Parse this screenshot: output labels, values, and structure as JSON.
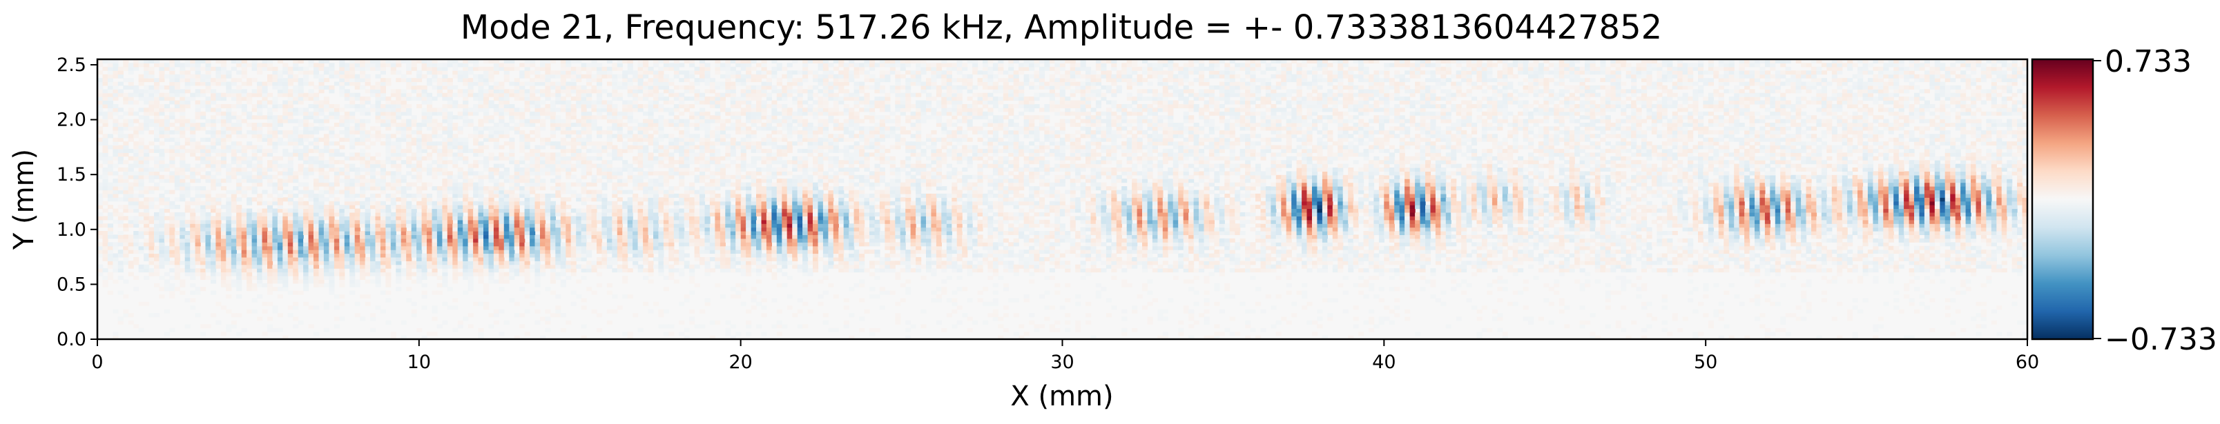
{
  "chart_data": {
    "type": "heatmap",
    "title": "Mode 21, Frequency: 517.26 kHz, Amplitude = +- 0.7333813604427852",
    "xlabel": "X (mm)",
    "ylabel": "Y (mm)",
    "xlim": [
      0,
      60
    ],
    "ylim": [
      0,
      2.55
    ],
    "x_ticks": [
      0,
      10,
      20,
      30,
      40,
      50,
      60
    ],
    "x_tick_labels": [
      "0",
      "10",
      "20",
      "30",
      "40",
      "50",
      "60"
    ],
    "y_ticks": [
      0.0,
      0.5,
      1.0,
      1.5,
      2.0,
      2.5
    ],
    "y_tick_labels": [
      "0.0",
      "0.5",
      "1.0",
      "1.5",
      "2.0",
      "2.5"
    ],
    "colormap": "RdBu_r",
    "colorbar": {
      "min": -0.733,
      "max": 0.733,
      "tick_labels": [
        "0.733",
        "−0.733"
      ],
      "colors": [
        "#67001f",
        "#b2182b",
        "#d6604d",
        "#f4a582",
        "#fddbc7",
        "#f7f7f7",
        "#d1e5f0",
        "#92c5de",
        "#4393c3",
        "#2166ac",
        "#053061"
      ]
    },
    "wave_packets": [
      {
        "x_center": 6.0,
        "x_half_width": 3.2,
        "y": 0.88,
        "amplitude": 0.42
      },
      {
        "x_center": 12.5,
        "x_half_width": 2.4,
        "y": 0.96,
        "amplitude": 0.52
      },
      {
        "x_center": 16.5,
        "x_half_width": 1.6,
        "y": 0.98,
        "amplitude": 0.28
      },
      {
        "x_center": 21.5,
        "x_half_width": 2.0,
        "y": 1.05,
        "amplitude": 0.62
      },
      {
        "x_center": 25.5,
        "x_half_width": 1.5,
        "y": 1.05,
        "amplitude": 0.3
      },
      {
        "x_center": 33.0,
        "x_half_width": 1.6,
        "y": 1.12,
        "amplitude": 0.38
      },
      {
        "x_center": 37.8,
        "x_half_width": 1.0,
        "y": 1.2,
        "amplitude": 0.72
      },
      {
        "x_center": 41.0,
        "x_half_width": 1.0,
        "y": 1.2,
        "amplitude": 0.68
      },
      {
        "x_center": 43.5,
        "x_half_width": 1.0,
        "y": 1.28,
        "amplitude": 0.25
      },
      {
        "x_center": 46.0,
        "x_half_width": 0.8,
        "y": 1.25,
        "amplitude": 0.22
      },
      {
        "x_center": 51.8,
        "x_half_width": 1.5,
        "y": 1.18,
        "amplitude": 0.52
      },
      {
        "x_center": 57.0,
        "x_half_width": 2.2,
        "y": 1.25,
        "amplitude": 0.66
      }
    ],
    "wavelength_mm": 0.72,
    "packet_y_half_width_mm": 0.17,
    "noise_level": 0.06
  }
}
